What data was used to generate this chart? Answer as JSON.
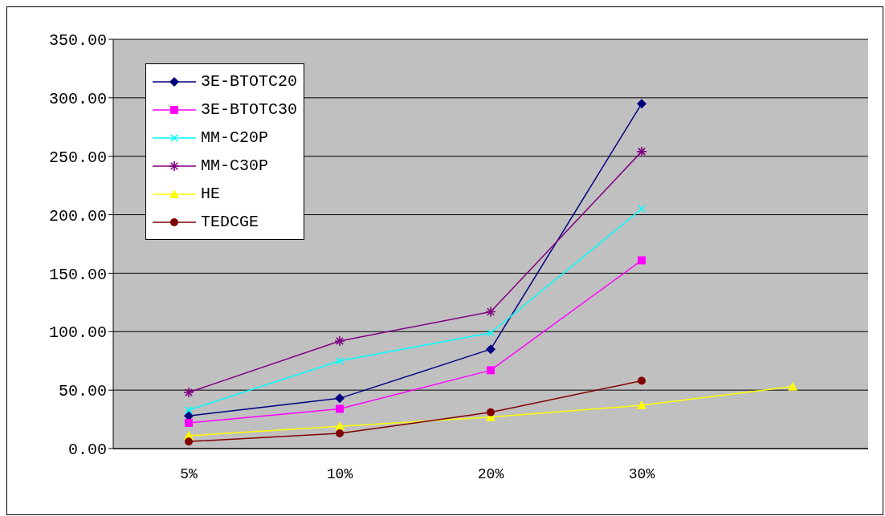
{
  "chart_data": {
    "type": "line",
    "categories": [
      "5%",
      "10%",
      "20%",
      "30%",
      null
    ],
    "ylim": [
      0,
      350
    ],
    "yticks": [
      {
        "value": 0,
        "label": "0.00"
      },
      {
        "value": 50,
        "label": "50.00"
      },
      {
        "value": 100,
        "label": "100.00"
      },
      {
        "value": 150,
        "label": "150.00"
      },
      {
        "value": 200,
        "label": "200.00"
      },
      {
        "value": 250,
        "label": "250.00"
      },
      {
        "value": 300,
        "label": "300.00"
      },
      {
        "value": 350,
        "label": "350.00"
      }
    ],
    "grid": "y",
    "legend": "top left",
    "line_style": "solid",
    "series": [
      {
        "name": "3E-BTOTC20",
        "color": "#000080",
        "marker": "diamond",
        "values": [
          28,
          43,
          85,
          295,
          null
        ]
      },
      {
        "name": "3E-BTOTC30",
        "color": "#ff00ff",
        "marker": "square",
        "values": [
          22,
          34,
          67,
          161,
          null
        ]
      },
      {
        "name": "MM-C20P",
        "color": "#00ffff",
        "marker": "cross",
        "values": [
          33,
          75,
          99,
          205,
          null
        ]
      },
      {
        "name": "MM-C30P",
        "color": "#800080",
        "marker": "star",
        "values": [
          48,
          92,
          117,
          254,
          null
        ]
      },
      {
        "name": "HE",
        "color": "#ffff00",
        "marker": "triangle",
        "values": [
          11,
          19,
          27,
          37,
          53
        ]
      },
      {
        "name": "TEDCGE",
        "color": "#800000",
        "marker": "circle",
        "values": [
          6,
          13,
          31,
          58,
          null
        ]
      }
    ]
  }
}
